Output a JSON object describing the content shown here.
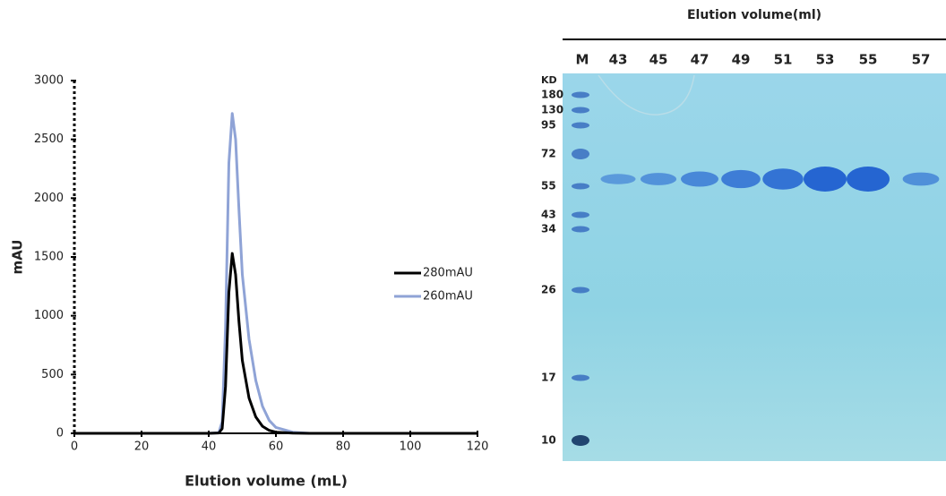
{
  "chart_data": {
    "type": "line",
    "x_label": "Elution volume (mL)",
    "y_label": "mAU",
    "x": [
      0,
      10,
      20,
      30,
      40,
      43,
      44,
      45,
      46,
      47,
      48,
      49,
      50,
      52,
      54,
      56,
      58,
      60,
      65,
      70,
      80,
      90,
      100,
      110,
      120
    ],
    "series": [
      {
        "name": "280mAU",
        "color": "#000000",
        "values": [
          0,
          0,
          0,
          0,
          0,
          3,
          40,
          400,
          1200,
          1530,
          1350,
          950,
          620,
          300,
          140,
          60,
          25,
          10,
          2,
          0,
          0,
          0,
          0,
          0,
          0
        ]
      },
      {
        "name": "260mAU",
        "color": "#8fa3d6",
        "values": [
          0,
          0,
          0,
          0,
          0,
          5,
          100,
          900,
          2300,
          2720,
          2500,
          1900,
          1350,
          800,
          450,
          230,
          110,
          50,
          10,
          0,
          0,
          0,
          0,
          0,
          0
        ]
      }
    ],
    "xlim": [
      0,
      120
    ],
    "xticks": [
      0,
      20,
      40,
      60,
      80,
      100,
      120
    ],
    "ylim": [
      0,
      3000
    ],
    "yticks": [
      0,
      500,
      1000,
      1500,
      2000,
      2500,
      3000
    ],
    "grid": false,
    "legend": "right"
  },
  "gel": {
    "title": "Elution volume(ml)",
    "lanes": [
      "M",
      "43",
      "45",
      "47",
      "49",
      "51",
      "53",
      "55",
      "57"
    ],
    "unit": "KD",
    "markers": [
      "180",
      "130",
      "95",
      "72",
      "55",
      "43",
      "34",
      "26",
      "17",
      "10"
    ]
  }
}
